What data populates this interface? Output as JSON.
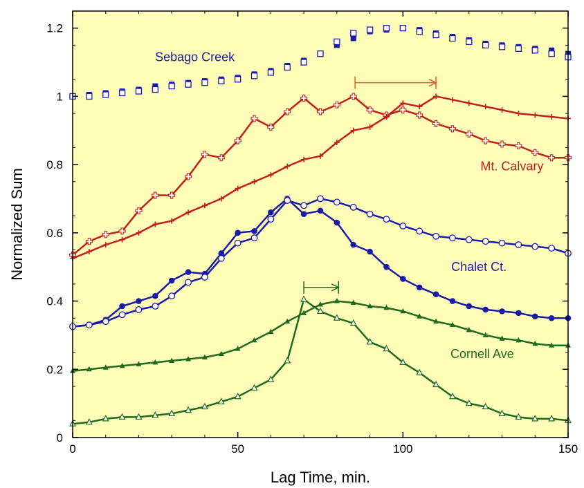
{
  "chart_data": {
    "type": "line",
    "title": "",
    "xlabel": "Lag Time, min.",
    "ylabel": "Normalized Sum",
    "xlim": [
      0,
      150
    ],
    "ylim": [
      0,
      1.25
    ],
    "xticks": [
      0,
      50,
      100,
      150
    ],
    "yticks": [
      0,
      0.2,
      0.4,
      0.6,
      0.8,
      1,
      1.2
    ],
    "ytick_labels": [
      "0",
      "0.2",
      "0.4",
      "0.6",
      "0.8",
      "1",
      "1.2"
    ],
    "background_color": "#fffdb8",
    "grid": false,
    "x": [
      0,
      5,
      10,
      15,
      20,
      25,
      30,
      35,
      40,
      45,
      50,
      55,
      60,
      65,
      70,
      75,
      80,
      85,
      90,
      95,
      100,
      105,
      110,
      115,
      120,
      125,
      130,
      135,
      140,
      145,
      150
    ],
    "series": [
      {
        "group": "Sebago Creek",
        "marker": "filled-square",
        "color": "#1a1aa8",
        "values": [
          1.0,
          1.005,
          1.01,
          1.015,
          1.02,
          1.03,
          1.035,
          1.04,
          1.045,
          1.05,
          1.055,
          1.065,
          1.075,
          1.09,
          1.105,
          1.125,
          1.15,
          1.17,
          1.19,
          1.195,
          1.2,
          1.195,
          1.185,
          1.175,
          1.165,
          1.155,
          1.15,
          1.145,
          1.14,
          1.135,
          1.125
        ]
      },
      {
        "group": "Sebago Creek",
        "marker": "open-square",
        "color": "#1a1aa8",
        "values": [
          1.0,
          1.0,
          1.005,
          1.01,
          1.015,
          1.02,
          1.03,
          1.035,
          1.04,
          1.045,
          1.05,
          1.06,
          1.07,
          1.085,
          1.1,
          1.125,
          1.16,
          1.185,
          1.195,
          1.2,
          1.2,
          1.19,
          1.18,
          1.17,
          1.16,
          1.15,
          1.145,
          1.14,
          1.135,
          1.125,
          1.115
        ]
      },
      {
        "group": "Mt. Calvary",
        "marker": "open-cross",
        "color": "#c0201a",
        "values": [
          0.535,
          0.575,
          0.595,
          0.605,
          0.665,
          0.71,
          0.71,
          0.765,
          0.83,
          0.82,
          0.87,
          0.935,
          0.91,
          0.955,
          0.995,
          0.955,
          0.975,
          1.0,
          0.96,
          0.945,
          0.96,
          0.945,
          0.92,
          0.905,
          0.89,
          0.87,
          0.86,
          0.855,
          0.835,
          0.82,
          0.82
        ]
      },
      {
        "group": "Mt. Calvary",
        "marker": "plus",
        "color": "#c0201a",
        "values": [
          0.525,
          0.545,
          0.565,
          0.58,
          0.6,
          0.625,
          0.635,
          0.66,
          0.68,
          0.7,
          0.73,
          0.75,
          0.77,
          0.795,
          0.815,
          0.825,
          0.865,
          0.9,
          0.91,
          0.94,
          0.98,
          0.97,
          1.0,
          0.99,
          0.98,
          0.97,
          0.96,
          0.95,
          0.945,
          0.94,
          0.935
        ]
      },
      {
        "group": "Chalet Ct.",
        "marker": "filled-circle",
        "color": "#1a1aa8",
        "values": [
          0.325,
          0.33,
          0.345,
          0.385,
          0.4,
          0.415,
          0.46,
          0.485,
          0.48,
          0.54,
          0.6,
          0.605,
          0.66,
          0.7,
          0.655,
          0.665,
          0.63,
          0.565,
          0.545,
          0.5,
          0.465,
          0.44,
          0.42,
          0.4,
          0.385,
          0.375,
          0.37,
          0.365,
          0.355,
          0.35,
          0.35
        ]
      },
      {
        "group": "Chalet Ct.",
        "marker": "open-circle",
        "color": "#1a1aa8",
        "values": [
          0.325,
          0.33,
          0.34,
          0.36,
          0.375,
          0.385,
          0.415,
          0.455,
          0.47,
          0.525,
          0.57,
          0.585,
          0.64,
          0.695,
          0.68,
          0.7,
          0.69,
          0.675,
          0.655,
          0.64,
          0.62,
          0.605,
          0.59,
          0.585,
          0.58,
          0.575,
          0.57,
          0.565,
          0.56,
          0.555,
          0.54
        ]
      },
      {
        "group": "Cornell Ave",
        "marker": "filled-triangle",
        "color": "#1e6b1e",
        "values": [
          0.195,
          0.2,
          0.205,
          0.21,
          0.215,
          0.22,
          0.225,
          0.23,
          0.235,
          0.245,
          0.26,
          0.285,
          0.31,
          0.34,
          0.365,
          0.39,
          0.4,
          0.395,
          0.385,
          0.38,
          0.37,
          0.355,
          0.34,
          0.33,
          0.315,
          0.3,
          0.29,
          0.285,
          0.275,
          0.27,
          0.27
        ]
      },
      {
        "group": "Cornell Ave",
        "marker": "open-triangle",
        "color": "#1e6b1e",
        "values": [
          0.04,
          0.045,
          0.055,
          0.06,
          0.06,
          0.065,
          0.07,
          0.08,
          0.09,
          0.105,
          0.12,
          0.145,
          0.17,
          0.225,
          0.405,
          0.37,
          0.35,
          0.335,
          0.28,
          0.26,
          0.22,
          0.19,
          0.155,
          0.12,
          0.1,
          0.09,
          0.07,
          0.06,
          0.055,
          0.055,
          0.05
        ]
      }
    ],
    "annotations": [
      {
        "text": "Sebago Creek",
        "x": 37,
        "y": 1.115,
        "color": "#1a1aa8"
      },
      {
        "text": "Mt. Calvary",
        "x": 133,
        "y": 0.795,
        "color": "#c0201a"
      },
      {
        "text": "Chalet Ct.",
        "x": 123,
        "y": 0.5,
        "color": "#1a1aa8"
      },
      {
        "text": "Cornell Ave",
        "x": 124,
        "y": 0.245,
        "color": "#1e6b1e"
      }
    ],
    "arrows": [
      {
        "from": 85.5,
        "to": 110,
        "y": 1.04,
        "color": "#e05a35"
      },
      {
        "from": 70,
        "to": 80.5,
        "y": 0.44,
        "color": "#1e6b1e"
      }
    ]
  }
}
